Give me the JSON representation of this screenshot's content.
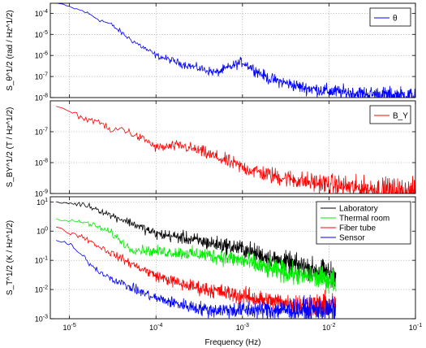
{
  "chart_data": [
    {
      "type": "line",
      "panel": "top",
      "ylabel": "S_θ^1/2 (rad / Hz^1/2)",
      "ylim": [
        1e-08,
        0.0003
      ],
      "yscale": "log",
      "yticks": [
        1e-08,
        1e-07,
        1e-06,
        1e-05,
        0.0001
      ],
      "yticklabels": [
        "10^-8",
        "10^-7",
        "10^-6",
        "10^-5",
        "10^-4"
      ],
      "legend_position": "top-right",
      "grid": true,
      "series": [
        {
          "name": "θ",
          "color": "#0000ff",
          "x": [
            7e-06,
            1e-05,
            1.5e-05,
            2.2e-05,
            3e-05,
            4e-05,
            5e-05,
            7e-05,
            0.0001,
            0.0002,
            0.0005,
            0.001,
            0.002,
            0.005,
            0.01,
            0.02,
            0.05,
            0.1
          ],
          "y": [
            0.0003,
            0.0002,
            0.00012,
            5e-05,
            3e-05,
            1.2e-05,
            6e-06,
            2.5e-06,
            1e-06,
            4e-07,
            1.5e-07,
            5e-07,
            8e-08,
            3e-08,
            2e-08,
            1.6e-08,
            1.3e-08,
            1.2e-08
          ],
          "noisy": true
        }
      ]
    },
    {
      "type": "line",
      "panel": "middle",
      "ylabel": "S_BY^1/2 (T / Hz^1/2)",
      "ylim": [
        1e-09,
        1e-06
      ],
      "yscale": "log",
      "yticks": [
        1e-09,
        1e-08,
        1e-07
      ],
      "yticklabels": [
        "10^-9",
        "10^-8",
        "10^-7"
      ],
      "legend_position": "top-right",
      "grid": true,
      "series": [
        {
          "name": "B_Y",
          "color": "#ff0000",
          "x": [
            7e-06,
            1e-05,
            1.5e-05,
            2.2e-05,
            3e-05,
            4e-05,
            6e-05,
            8e-05,
            0.0001,
            0.0002,
            0.0003,
            0.0005,
            0.001,
            0.002,
            0.005,
            0.01,
            0.02,
            0.05,
            0.1
          ],
          "y": [
            6e-07,
            4.5e-07,
            2.6e-07,
            2.2e-07,
            1e-07,
            1.3e-07,
            7e-08,
            5e-08,
            3e-08,
            3.5e-08,
            2.5e-08,
            1.5e-08,
            7e-09,
            4e-09,
            2.5e-09,
            2e-09,
            1.5e-09,
            1.3e-09,
            1.1e-09
          ],
          "noisy": true
        }
      ]
    },
    {
      "type": "line",
      "panel": "bottom",
      "ylabel": "S_T^1/2 (K / Hz^1/2)",
      "xlabel": "Frequency (Hz)",
      "xscale": "log",
      "xlim": [
        6e-06,
        0.1
      ],
      "xticks": [
        1e-05,
        0.0001,
        0.001,
        0.01,
        0.1
      ],
      "xticklabels": [
        "10^-5",
        "10^-4",
        "10^-3",
        "10^-2",
        "10^-1"
      ],
      "ylim": [
        0.001,
        15
      ],
      "yscale": "log",
      "yticks": [
        0.001,
        0.01,
        0.1,
        1,
        10
      ],
      "yticklabels": [
        "10^-3",
        "10^-2",
        "10^-1",
        "10^0",
        "10^1"
      ],
      "legend_position": "top-right",
      "grid": true,
      "series": [
        {
          "name": "Laboratory",
          "color": "#000000",
          "x": [
            7e-06,
            1e-05,
            1.5e-05,
            2e-05,
            3e-05,
            5e-05,
            0.0001,
            0.0002,
            0.0004,
            0.001,
            0.002,
            0.005,
            0.012
          ],
          "y": [
            10,
            9,
            8,
            6,
            3.5,
            2,
            0.8,
            0.6,
            0.4,
            0.25,
            0.12,
            0.06,
            0.03
          ],
          "noisy": true
        },
        {
          "name": "Thermal room",
          "color": "#00ee00",
          "x": [
            7e-06,
            1e-05,
            1.5e-05,
            2e-05,
            3e-05,
            5e-05,
            0.0001,
            0.0002,
            0.0004,
            0.001,
            0.002,
            0.005,
            0.012
          ],
          "y": [
            2.5,
            2.2,
            2,
            1.5,
            0.9,
            0.25,
            0.2,
            0.18,
            0.15,
            0.1,
            0.05,
            0.03,
            0.02
          ],
          "noisy": true
        },
        {
          "name": "Fiber tube",
          "color": "#ff0000",
          "x": [
            7e-06,
            1e-05,
            1.5e-05,
            2e-05,
            3e-05,
            5e-05,
            0.0001,
            0.0002,
            0.0004,
            0.001,
            0.002,
            0.005,
            0.012
          ],
          "y": [
            1.3,
            0.9,
            0.6,
            0.35,
            0.18,
            0.08,
            0.03,
            0.015,
            0.01,
            0.006,
            0.004,
            0.003,
            0.003
          ],
          "noisy": true
        },
        {
          "name": "Sensor",
          "color": "#0000ff",
          "x": [
            7e-06,
            1e-05,
            1.5e-05,
            2e-05,
            3e-05,
            5e-05,
            0.0001,
            0.0002,
            0.0004,
            0.001,
            0.002,
            0.005,
            0.012
          ],
          "y": [
            0.5,
            0.35,
            0.12,
            0.05,
            0.025,
            0.012,
            0.005,
            0.003,
            0.002,
            0.002,
            0.002,
            0.002,
            0.002
          ],
          "noisy": true
        }
      ]
    }
  ]
}
